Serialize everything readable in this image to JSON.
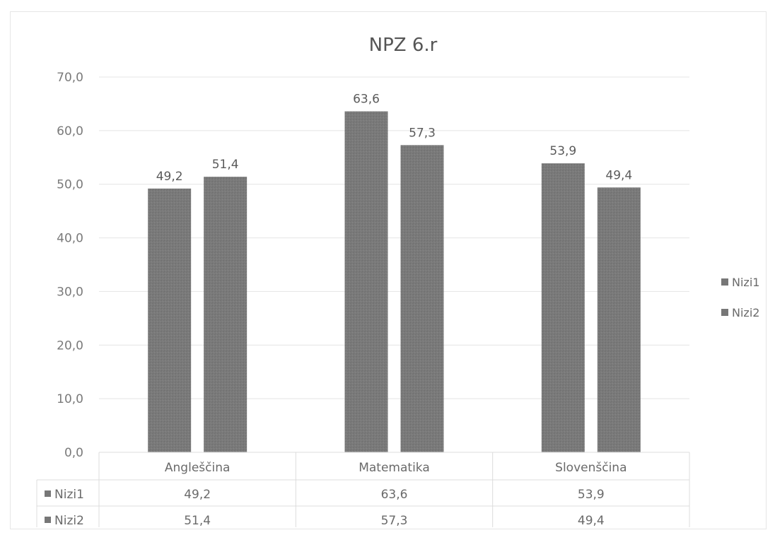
{
  "chart_data": {
    "type": "bar",
    "title": "NPZ 6.r",
    "categories": [
      "Angleščina",
      "Matematika",
      "Slovenščina"
    ],
    "series": [
      {
        "name": "Nizi1",
        "values": [
          49.2,
          63.6,
          53.9
        ],
        "labels": [
          "49,2",
          "63,6",
          "53,9"
        ]
      },
      {
        "name": "Nizi2",
        "values": [
          51.4,
          57.3,
          49.4
        ],
        "labels": [
          "51,4",
          "57,3",
          "49,4"
        ]
      }
    ],
    "ylim": [
      0,
      70
    ],
    "yticks": [
      "0,0",
      "10,0",
      "20,0",
      "30,0",
      "40,0",
      "50,0",
      "60,0",
      "70,0"
    ],
    "grid": true,
    "legend": "right",
    "data_table": true,
    "colors": {
      "bar": "#777777",
      "grid": "#e4e4e4",
      "text": "#666666"
    }
  }
}
